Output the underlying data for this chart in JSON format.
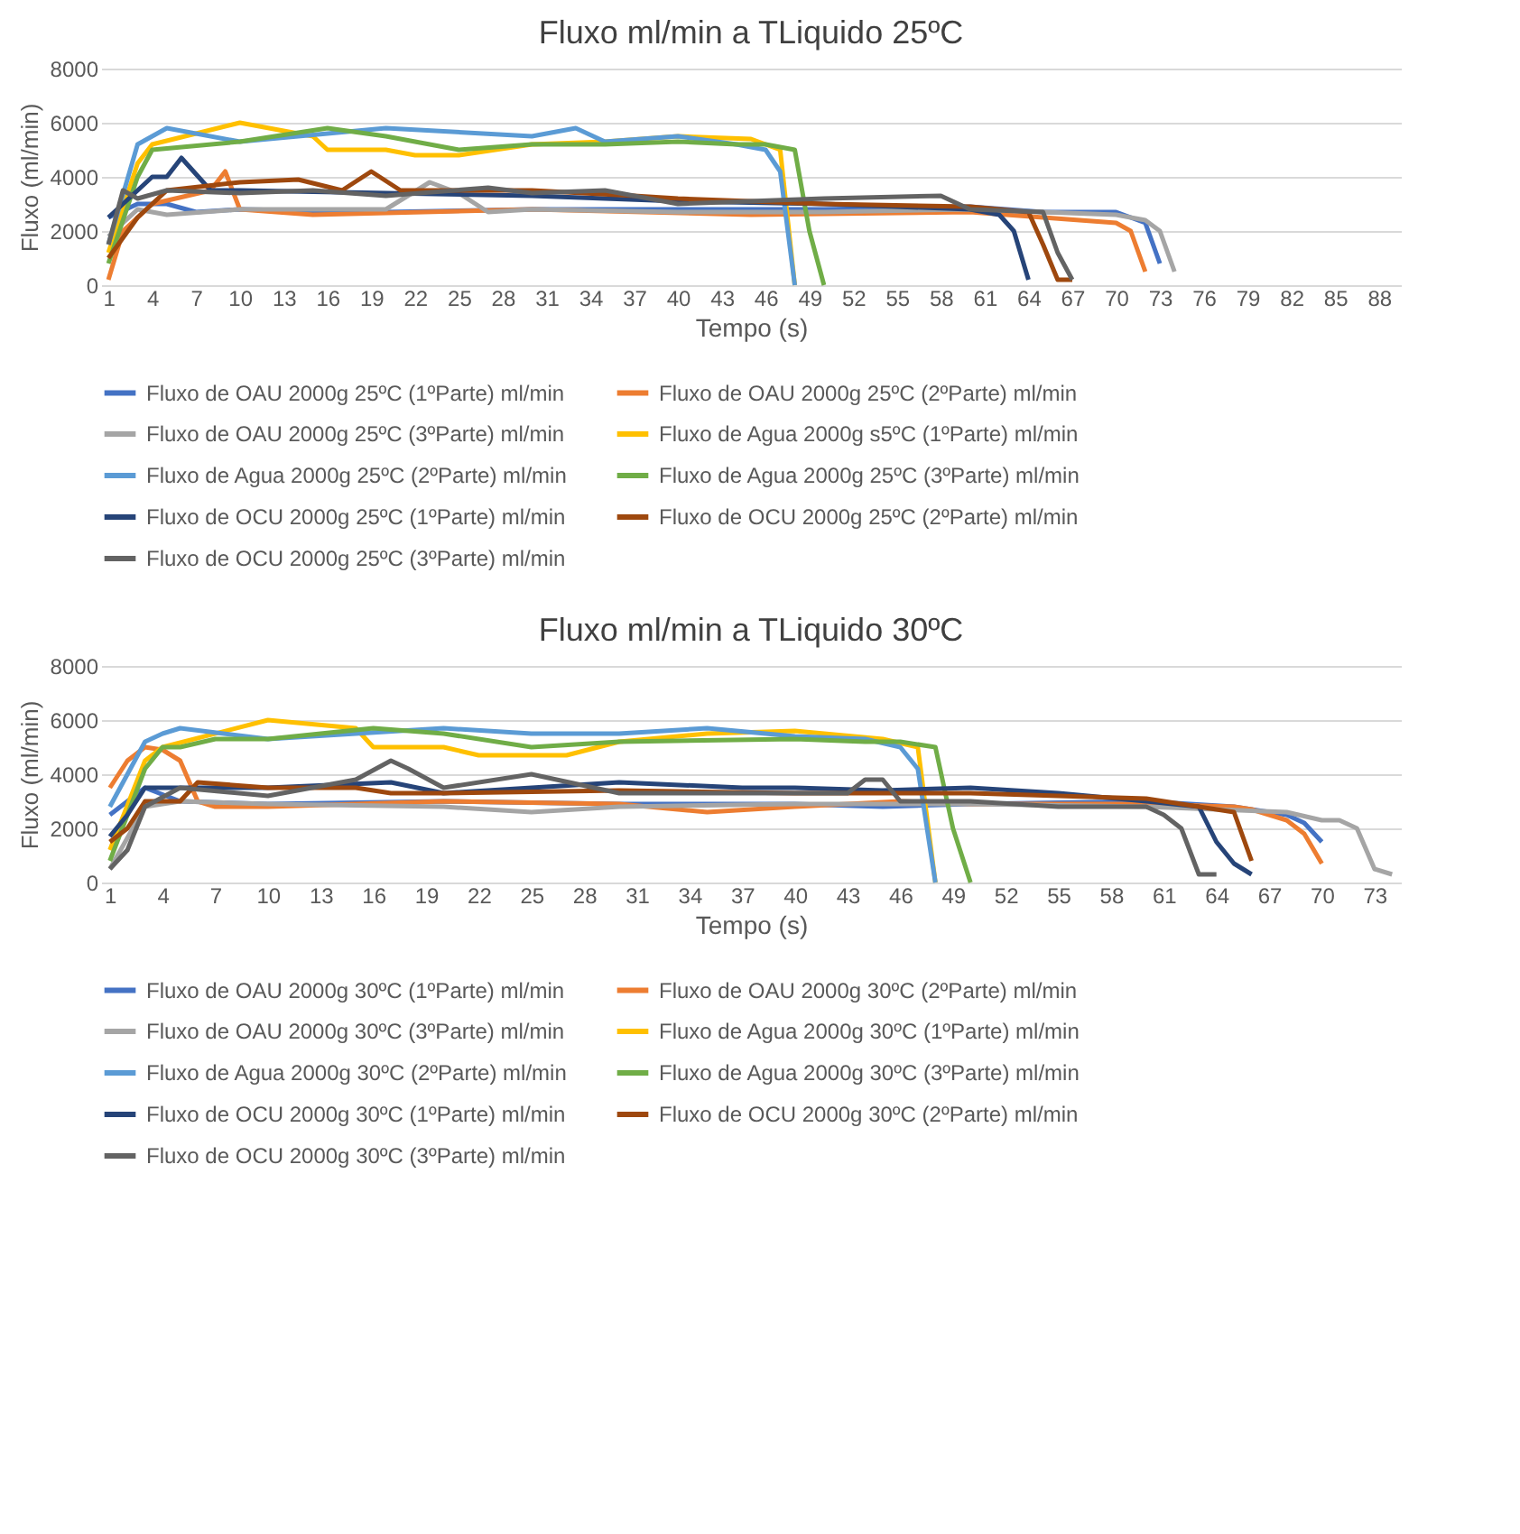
{
  "chart_data": [
    {
      "type": "line",
      "title": "Fluxo ml/min a TLiquido 25ºC",
      "xlabel": "Tempo (s)",
      "ylabel": "Fluxo (ml/min)",
      "xlim": [
        0.5,
        89.5
      ],
      "xticks": [
        1,
        4,
        7,
        10,
        13,
        16,
        19,
        22,
        25,
        28,
        31,
        34,
        37,
        40,
        43,
        46,
        49,
        52,
        55,
        58,
        61,
        64,
        67,
        70,
        73,
        76,
        79,
        82,
        85,
        88
      ],
      "ylim": [
        0,
        8000
      ],
      "yticks": [
        0,
        2000,
        4000,
        6000,
        8000
      ],
      "grid": "y",
      "legend": "bottom",
      "marker": "none",
      "line_style": "solid",
      "series": [
        {
          "name": "Fluxo de OAU 2000g 25ºC (1ºParte) ml/min",
          "color": "#4472c4",
          "x": [
            1,
            3,
            5,
            7,
            10,
            20,
            30,
            40,
            50,
            60,
            65,
            70,
            72,
            73
          ],
          "values": [
            2500,
            3000,
            3000,
            2700,
            2800,
            2700,
            2800,
            2800,
            2800,
            2900,
            2700,
            2700,
            2300,
            800
          ]
        },
        {
          "name": "Fluxo de OAU 2000g 25ºC (2ºParte) ml/min",
          "color": "#ed7d31",
          "x": [
            1,
            2,
            4,
            8,
            9,
            10,
            15,
            30,
            45,
            60,
            70,
            71,
            72
          ],
          "values": [
            200,
            2000,
            3000,
            3500,
            4200,
            2800,
            2600,
            2800,
            2600,
            2700,
            2300,
            2000,
            500
          ]
        },
        {
          "name": "Fluxo de OAU 2000g 25ºC (3ºParte) ml/min",
          "color": "#a5a5a5",
          "x": [
            1,
            3,
            5,
            10,
            20,
            23,
            25,
            27,
            30,
            40,
            50,
            60,
            70,
            72,
            73,
            74
          ],
          "values": [
            1800,
            2800,
            2600,
            2800,
            2800,
            3800,
            3400,
            2700,
            2800,
            2700,
            2700,
            2800,
            2600,
            2400,
            2000,
            500
          ]
        },
        {
          "name": "Fluxo de Agua 2000g s5ºC (1ºParte) ml/min",
          "color": "#ffc000",
          "x": [
            1,
            3,
            4,
            10,
            15,
            16,
            20,
            22,
            25,
            30,
            35,
            40,
            45,
            47,
            48
          ],
          "values": [
            1200,
            4500,
            5200,
            6000,
            5500,
            5000,
            5000,
            4800,
            4800,
            5200,
            5300,
            5500,
            5400,
            5000,
            0
          ]
        },
        {
          "name": "Fluxo de Agua 2000g 25ºC (2ºParte) ml/min",
          "color": "#5b9bd5",
          "x": [
            1,
            3,
            4,
            5,
            10,
            20,
            30,
            33,
            35,
            40,
            44,
            46,
            47,
            48
          ],
          "values": [
            1500,
            5200,
            5500,
            5800,
            5300,
            5800,
            5500,
            5800,
            5300,
            5500,
            5200,
            5000,
            4200,
            0
          ]
        },
        {
          "name": "Fluxo de Agua 2000g 25ºC (3ºParte) ml/min",
          "color": "#70ad47",
          "x": [
            1,
            3,
            4,
            10,
            16,
            20,
            25,
            30,
            35,
            40,
            44,
            46,
            48,
            49,
            50
          ],
          "values": [
            800,
            4000,
            5000,
            5300,
            5800,
            5500,
            5000,
            5200,
            5200,
            5300,
            5200,
            5200,
            5000,
            2000,
            0
          ]
        },
        {
          "name": "Fluxo de OCU 2000g 25ºC (1ºParte) ml/min",
          "color": "#264478",
          "x": [
            1,
            3,
            4,
            5,
            6,
            8,
            10,
            20,
            30,
            40,
            50,
            60,
            62,
            63,
            64
          ],
          "values": [
            2500,
            3500,
            4000,
            4000,
            4700,
            3500,
            3500,
            3400,
            3300,
            3100,
            3000,
            2800,
            2600,
            2000,
            200
          ]
        },
        {
          "name": "Fluxo de OCU 2000g 25ºC (2ºParte) ml/min",
          "color": "#9e480e",
          "x": [
            1,
            3,
            5,
            10,
            14,
            17,
            19,
            21,
            30,
            37,
            40,
            50,
            60,
            64,
            65,
            66,
            67
          ],
          "values": [
            1000,
            2500,
            3500,
            3800,
            3900,
            3500,
            4200,
            3500,
            3500,
            3300,
            3200,
            3000,
            2900,
            2700,
            1500,
            200,
            200
          ]
        },
        {
          "name": "Fluxo de OCU 2000g 25ºC (3ºParte) ml/min",
          "color": "#636363",
          "x": [
            1,
            2,
            3,
            5,
            10,
            15,
            20,
            27,
            30,
            35,
            40,
            50,
            58,
            60,
            65,
            66,
            67
          ],
          "values": [
            1500,
            3500,
            3200,
            3500,
            3400,
            3500,
            3300,
            3600,
            3400,
            3500,
            3000,
            3200,
            3300,
            2800,
            2700,
            1200,
            200
          ]
        }
      ]
    },
    {
      "type": "line",
      "title": "Fluxo ml/min a TLiquido 30ºC",
      "xlabel": "Tempo (s)",
      "ylabel": "Fluxo (ml/min)",
      "xlim": [
        0.5,
        74.5
      ],
      "xticks": [
        1,
        4,
        7,
        10,
        13,
        16,
        19,
        22,
        25,
        28,
        31,
        34,
        37,
        40,
        43,
        46,
        49,
        52,
        55,
        58,
        61,
        64,
        67,
        70,
        73
      ],
      "ylim": [
        0,
        8000
      ],
      "yticks": [
        0,
        2000,
        4000,
        6000,
        8000
      ],
      "grid": "y",
      "legend": "bottom",
      "marker": "none",
      "line_style": "solid",
      "series": [
        {
          "name": "Fluxo de OAU 2000g 30ºC (1ºParte) ml/min",
          "color": "#4472c4",
          "x": [
            1,
            2,
            3,
            5,
            10,
            20,
            30,
            40,
            45,
            50,
            60,
            65,
            68,
            69,
            70
          ],
          "values": [
            2500,
            3000,
            3500,
            3000,
            2900,
            3000,
            2900,
            2900,
            2800,
            2900,
            3000,
            2800,
            2500,
            2200,
            1500
          ]
        },
        {
          "name": "Fluxo de OAU 2000g 30ºC (2ºParte) ml/min",
          "color": "#ed7d31",
          "x": [
            1,
            2,
            3,
            4,
            5,
            6,
            7,
            10,
            20,
            30,
            35,
            40,
            46,
            50,
            60,
            65,
            66,
            68,
            69,
            70
          ],
          "values": [
            3500,
            4500,
            5000,
            4900,
            4500,
            3000,
            2800,
            2800,
            3000,
            2900,
            2600,
            2800,
            3000,
            2900,
            2900,
            2800,
            2700,
            2300,
            1800,
            700
          ]
        },
        {
          "name": "Fluxo de OAU 2000g 30ºC (3ºParte) ml/min",
          "color": "#a5a5a5",
          "x": [
            1,
            3,
            5,
            10,
            20,
            25,
            30,
            40,
            50,
            60,
            68,
            70,
            71,
            72,
            73,
            74
          ],
          "values": [
            500,
            2800,
            3000,
            2900,
            2800,
            2600,
            2800,
            2900,
            2900,
            2800,
            2600,
            2300,
            2300,
            2000,
            500,
            300
          ]
        },
        {
          "name": "Fluxo de Agua 2000g 30ºC (1ºParte) ml/min",
          "color": "#ffc000",
          "x": [
            1,
            3,
            4,
            10,
            15,
            16,
            20,
            22,
            25,
            27,
            30,
            35,
            40,
            45,
            47,
            48
          ],
          "values": [
            1200,
            4500,
            5000,
            6000,
            5700,
            5000,
            5000,
            4700,
            4700,
            4700,
            5200,
            5500,
            5600,
            5300,
            5000,
            0
          ]
        },
        {
          "name": "Fluxo de Agua 2000g 30ºC (2ºParte) ml/min",
          "color": "#5b9bd5",
          "x": [
            1,
            3,
            4,
            5,
            10,
            20,
            25,
            30,
            35,
            40,
            44,
            46,
            47,
            48
          ],
          "values": [
            2800,
            5200,
            5500,
            5700,
            5300,
            5700,
            5500,
            5500,
            5700,
            5400,
            5300,
            5000,
            4200,
            0
          ]
        },
        {
          "name": "Fluxo de Agua 2000g 30ºC (3ºParte) ml/min",
          "color": "#70ad47",
          "x": [
            1,
            3,
            4,
            5,
            7,
            10,
            16,
            20,
            25,
            30,
            40,
            44,
            46,
            48,
            49,
            50
          ],
          "values": [
            800,
            4200,
            5000,
            5000,
            5300,
            5300,
            5700,
            5500,
            5000,
            5200,
            5300,
            5200,
            5200,
            5000,
            2000,
            0
          ]
        },
        {
          "name": "Fluxo de OCU 2000g 30ºC (1ºParte) ml/min",
          "color": "#264478",
          "x": [
            1,
            2,
            3,
            10,
            17,
            20,
            30,
            37,
            40,
            45,
            50,
            55,
            60,
            63,
            64,
            65,
            66
          ],
          "values": [
            1700,
            2500,
            3500,
            3500,
            3700,
            3300,
            3700,
            3500,
            3500,
            3400,
            3500,
            3300,
            3000,
            2800,
            1500,
            700,
            300
          ]
        },
        {
          "name": "Fluxo de OCU 2000g 30ºC (2ºParte) ml/min",
          "color": "#9e480e",
          "x": [
            1,
            2,
            3,
            5,
            6,
            10,
            15,
            17,
            20,
            30,
            40,
            50,
            60,
            64,
            65,
            66
          ],
          "values": [
            1500,
            2000,
            3000,
            3000,
            3700,
            3500,
            3500,
            3300,
            3300,
            3400,
            3300,
            3300,
            3100,
            2700,
            2600,
            800
          ]
        },
        {
          "name": "Fluxo de OCU 2000g 30ºC (3ºParte) ml/min",
          "color": "#636363",
          "x": [
            1,
            2,
            3,
            5,
            10,
            15,
            17,
            18,
            20,
            25,
            30,
            40,
            43,
            44,
            45,
            46,
            50,
            55,
            60,
            61,
            62,
            63,
            64
          ],
          "values": [
            500,
            1200,
            2800,
            3500,
            3200,
            3800,
            4500,
            4200,
            3500,
            4000,
            3300,
            3300,
            3300,
            3800,
            3800,
            3000,
            3000,
            2800,
            2800,
            2500,
            2000,
            300,
            300
          ]
        }
      ]
    }
  ]
}
